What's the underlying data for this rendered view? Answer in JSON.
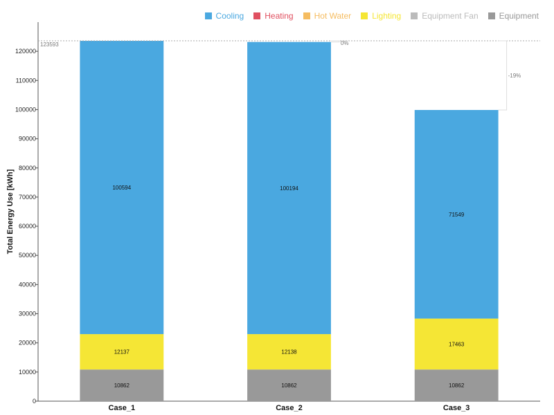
{
  "chart_data": {
    "type": "bar",
    "stacked": true,
    "categories": [
      "Case_1",
      "Case_2",
      "Case_3"
    ],
    "ylabel": "Total Energy Use [kWh]",
    "xlabel": "",
    "ylim": [
      0,
      130000
    ],
    "yticks": [
      0,
      10000,
      20000,
      30000,
      40000,
      50000,
      60000,
      70000,
      80000,
      90000,
      100000,
      110000,
      120000
    ],
    "yticks_labels": [
      "0",
      "10000",
      "20000",
      "30000",
      "40000",
      "50000",
      "60000",
      "70000",
      "80000",
      "90000",
      "100000",
      "110000",
      "120000"
    ],
    "legend_position": "top-right",
    "series": [
      {
        "name": "Cooling",
        "color": "#4aa8e0",
        "values": [
          100594,
          100194,
          71549
        ],
        "labels": [
          "100594",
          "100194",
          "71549"
        ]
      },
      {
        "name": "Heating",
        "color": "#e05060",
        "values": [
          0,
          0,
          0
        ]
      },
      {
        "name": "Hot Water",
        "color": "#f5bc60",
        "values": [
          0,
          0,
          0
        ]
      },
      {
        "name": "Lighting",
        "color": "#f5e635",
        "values": [
          12137,
          12138,
          17463
        ],
        "labels": [
          "12137",
          "12138",
          "17463"
        ]
      },
      {
        "name": "Equipment Fan",
        "color": "#bbbbbb",
        "values": [
          0,
          0,
          0
        ]
      },
      {
        "name": "Equipment",
        "color": "#999999",
        "values": [
          10862,
          10862,
          10862
        ],
        "labels": [
          "10862",
          "10862",
          "10862"
        ]
      }
    ],
    "reference": {
      "value": 123593,
      "label": "123593"
    },
    "pct_annotations": [
      null,
      "0%",
      "-19%"
    ]
  }
}
